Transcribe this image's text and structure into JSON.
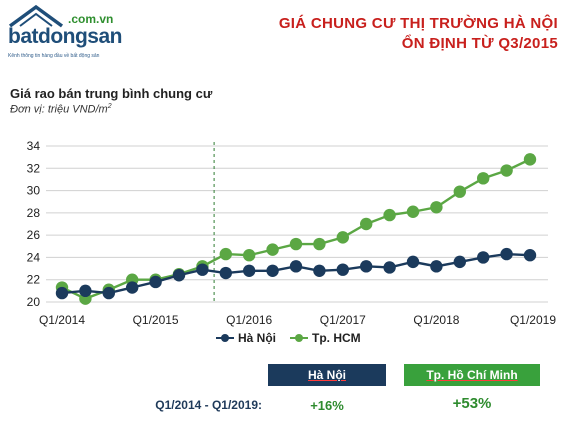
{
  "brand": {
    "domain": ".com.vn",
    "name": "batdongsan",
    "tagline": "Kênh thông tin hàng đầu về bất động sản",
    "color": "#1f4e79"
  },
  "title": {
    "line1": "GIÁ CHUNG CƯ THỊ TRƯỜNG HÀ NỘI",
    "line2": "ỔN ĐỊNH TỪ Q3/2015",
    "color": "#c8201d"
  },
  "subtitle": "Giá rao bán trung bình chung cư",
  "unit_prefix": "Đơn vị: triệu VND/m",
  "unit_sup": "2",
  "legend": {
    "hanoi": "Hà Nội",
    "hcm": "Tp. HCM"
  },
  "summary": {
    "period_label": "Q1/2014 - Q1/2019:",
    "hanoi_header": "Hà Nội",
    "hcm_header": "Tp. Hồ Chí Minh",
    "hanoi_value": "+16%",
    "hcm_value": "+53%"
  },
  "chart_data": {
    "type": "line",
    "x": [
      "Q1/2014",
      "Q2/2014",
      "Q3/2014",
      "Q4/2014",
      "Q1/2015",
      "Q2/2015",
      "Q3/2015",
      "Q4/2015",
      "Q1/2016",
      "Q2/2016",
      "Q3/2016",
      "Q4/2016",
      "Q1/2017",
      "Q2/2017",
      "Q3/2017",
      "Q4/2017",
      "Q1/2018",
      "Q2/2018",
      "Q3/2018",
      "Q4/2018",
      "Q1/2019"
    ],
    "x_tick_labels": [
      "Q1/2014",
      "Q1/2015",
      "Q1/2016",
      "Q1/2017",
      "Q1/2018",
      "Q1/2019"
    ],
    "y_ticks": [
      20,
      22,
      24,
      26,
      28,
      30,
      32,
      34
    ],
    "ylim": [
      20,
      34
    ],
    "vertical_marker": "Q3/2015",
    "series": [
      {
        "name": "Hà Nội",
        "color": "#1b3a5c",
        "values": [
          20.8,
          21.0,
          20.8,
          21.3,
          21.8,
          22.4,
          22.9,
          22.6,
          22.8,
          22.8,
          23.2,
          22.8,
          22.9,
          23.2,
          23.1,
          23.6,
          23.2,
          23.6,
          24.0,
          24.3,
          24.2
        ]
      },
      {
        "name": "Tp. HCM",
        "color": "#5ba744",
        "values": [
          21.3,
          20.3,
          21.1,
          22.0,
          22.0,
          22.5,
          23.2,
          24.3,
          24.2,
          24.7,
          25.2,
          25.2,
          25.8,
          27.0,
          27.8,
          28.1,
          28.5,
          29.9,
          31.1,
          31.8,
          32.8
        ]
      }
    ],
    "grid": true
  }
}
